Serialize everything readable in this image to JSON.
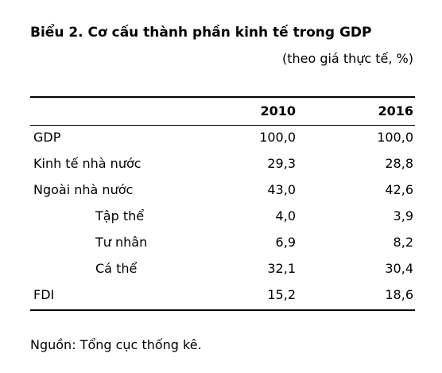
{
  "title": "Biểu 2. Cơ cấu thành phần kinh tế trong GDP",
  "subtitle": "(theo giá thực tế, %)",
  "table": {
    "columns": [
      "2010",
      "2016"
    ],
    "rows": [
      {
        "label": "GDP",
        "values": [
          "100,0",
          "100,0"
        ]
      },
      {
        "label": "Kinh tế nhà nước",
        "values": [
          "29,3",
          "28,8"
        ]
      },
      {
        "label": "Ngoài nhà nước",
        "values": [
          "43,0",
          "42,6"
        ],
        "subrows": [
          {
            "label": "Tập thể",
            "values": [
              "4,0",
              "3,9"
            ]
          },
          {
            "label": "Tư nhân",
            "values": [
              "6,9",
              "8,2"
            ]
          },
          {
            "label": "Cá thể",
            "values": [
              "32,1",
              "30,4"
            ]
          }
        ]
      },
      {
        "label": "FDI",
        "values": [
          "15,2",
          "18,6"
        ]
      }
    ]
  },
  "source": "Nguồn: Tổng cục thống kê."
}
